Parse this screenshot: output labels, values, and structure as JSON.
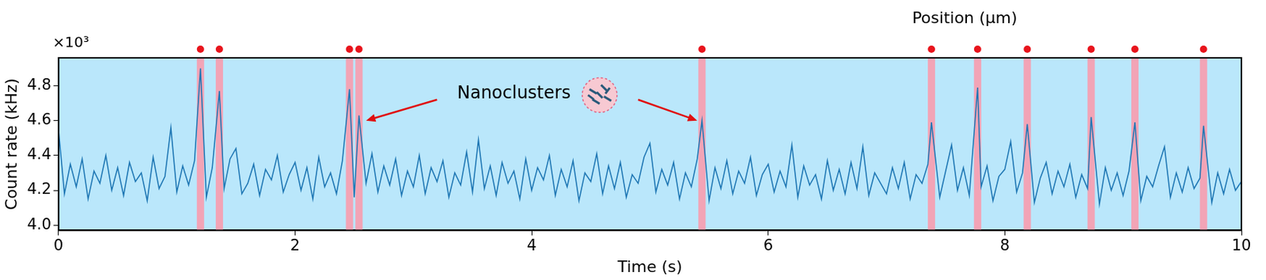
{
  "chart_data": {
    "type": "line",
    "x_label": "Time (s)",
    "y_label": "Count rate (kHz)",
    "y_multiplier": "×10³",
    "top_axis_label": "Position (μm)",
    "xlim": [
      0,
      10
    ],
    "xticks": [
      0,
      2,
      4,
      6,
      8,
      10
    ],
    "ylim": [
      3.97,
      4.96
    ],
    "yticks": [
      {
        "value": 4.0,
        "label": "4.0"
      },
      {
        "value": 4.2,
        "label": "4.2"
      },
      {
        "value": 4.4,
        "label": "4.4"
      },
      {
        "value": 4.6,
        "label": "4.6"
      },
      {
        "value": 4.8,
        "label": "4.8"
      }
    ],
    "grid": false,
    "color": "#1f77b4",
    "x": [
      0.0,
      0.05,
      0.1,
      0.15,
      0.2,
      0.25,
      0.3,
      0.35,
      0.4,
      0.45,
      0.5,
      0.55,
      0.6,
      0.65,
      0.7,
      0.75,
      0.8,
      0.85,
      0.9,
      0.95,
      1.0,
      1.05,
      1.1,
      1.15,
      1.2,
      1.25,
      1.3,
      1.36,
      1.4,
      1.45,
      1.5,
      1.55,
      1.6,
      1.65,
      1.7,
      1.75,
      1.8,
      1.85,
      1.9,
      1.95,
      2.0,
      2.05,
      2.1,
      2.15,
      2.2,
      2.25,
      2.3,
      2.35,
      2.4,
      2.46,
      2.5,
      2.54,
      2.6,
      2.65,
      2.7,
      2.75,
      2.8,
      2.85,
      2.9,
      2.95,
      3.0,
      3.05,
      3.1,
      3.15,
      3.2,
      3.25,
      3.3,
      3.35,
      3.4,
      3.45,
      3.5,
      3.55,
      3.6,
      3.65,
      3.7,
      3.75,
      3.8,
      3.85,
      3.9,
      3.95,
      4.0,
      4.05,
      4.1,
      4.15,
      4.2,
      4.25,
      4.3,
      4.35,
      4.4,
      4.45,
      4.5,
      4.55,
      4.6,
      4.65,
      4.7,
      4.75,
      4.8,
      4.85,
      4.9,
      4.95,
      5.0,
      5.05,
      5.1,
      5.15,
      5.2,
      5.25,
      5.3,
      5.35,
      5.4,
      5.44,
      5.5,
      5.55,
      5.6,
      5.65,
      5.7,
      5.75,
      5.8,
      5.85,
      5.9,
      5.95,
      6.0,
      6.05,
      6.1,
      6.15,
      6.2,
      6.25,
      6.3,
      6.35,
      6.4,
      6.45,
      6.5,
      6.55,
      6.6,
      6.65,
      6.7,
      6.75,
      6.8,
      6.85,
      6.9,
      6.95,
      7.0,
      7.05,
      7.1,
      7.15,
      7.2,
      7.25,
      7.3,
      7.35,
      7.38,
      7.45,
      7.5,
      7.55,
      7.6,
      7.65,
      7.7,
      7.77,
      7.8,
      7.85,
      7.9,
      7.95,
      8.0,
      8.05,
      8.1,
      8.15,
      8.19,
      8.25,
      8.3,
      8.35,
      8.4,
      8.45,
      8.5,
      8.55,
      8.6,
      8.65,
      8.7,
      8.73,
      8.8,
      8.85,
      8.9,
      8.95,
      9.0,
      9.05,
      9.1,
      9.15,
      9.2,
      9.25,
      9.3,
      9.35,
      9.4,
      9.45,
      9.5,
      9.55,
      9.6,
      9.65,
      9.68,
      9.75,
      9.8,
      9.85,
      9.9,
      9.95,
      10.0
    ],
    "values": [
      4.55,
      4.18,
      4.35,
      4.22,
      4.38,
      4.15,
      4.31,
      4.24,
      4.4,
      4.2,
      4.33,
      4.17,
      4.36,
      4.25,
      4.3,
      4.14,
      4.39,
      4.21,
      4.28,
      4.56,
      4.19,
      4.34,
      4.23,
      4.37,
      4.9,
      4.16,
      4.33,
      4.77,
      4.21,
      4.38,
      4.44,
      4.18,
      4.24,
      4.35,
      4.17,
      4.32,
      4.26,
      4.4,
      4.19,
      4.29,
      4.36,
      4.2,
      4.33,
      4.15,
      4.39,
      4.22,
      4.3,
      4.18,
      4.37,
      4.78,
      4.16,
      4.63,
      4.24,
      4.41,
      4.19,
      4.34,
      4.23,
      4.38,
      4.17,
      4.31,
      4.22,
      4.4,
      4.18,
      4.33,
      4.25,
      4.37,
      4.16,
      4.3,
      4.23,
      4.42,
      4.19,
      4.49,
      4.21,
      4.34,
      4.17,
      4.36,
      4.24,
      4.31,
      4.15,
      4.38,
      4.2,
      4.33,
      4.26,
      4.4,
      4.17,
      4.32,
      4.22,
      4.37,
      4.14,
      4.3,
      4.25,
      4.41,
      4.18,
      4.34,
      4.21,
      4.36,
      4.16,
      4.29,
      4.24,
      4.39,
      4.47,
      4.19,
      4.32,
      4.23,
      4.36,
      4.15,
      4.3,
      4.22,
      4.38,
      4.6,
      4.14,
      4.33,
      4.21,
      4.37,
      4.18,
      4.31,
      4.24,
      4.39,
      4.17,
      4.29,
      4.35,
      4.19,
      4.31,
      4.22,
      4.46,
      4.16,
      4.34,
      4.23,
      4.29,
      4.15,
      4.37,
      4.2,
      4.32,
      4.18,
      4.36,
      4.21,
      4.45,
      4.17,
      4.3,
      4.24,
      4.18,
      4.33,
      4.21,
      4.36,
      4.15,
      4.29,
      4.24,
      4.35,
      4.59,
      4.16,
      4.31,
      4.46,
      4.2,
      4.33,
      4.17,
      4.79,
      4.22,
      4.34,
      4.14,
      4.28,
      4.32,
      4.48,
      4.19,
      4.3,
      4.58,
      4.13,
      4.27,
      4.36,
      4.18,
      4.31,
      4.22,
      4.35,
      4.16,
      4.29,
      4.21,
      4.62,
      4.12,
      4.33,
      4.2,
      4.3,
      4.17,
      4.31,
      4.59,
      4.14,
      4.28,
      4.22,
      4.34,
      4.45,
      4.16,
      4.3,
      4.19,
      4.33,
      4.21,
      4.27,
      4.57,
      4.13,
      4.3,
      4.18,
      4.32,
      4.2,
      4.25
    ],
    "nanocluster_times": [
      1.2,
      1.36,
      2.46,
      2.54,
      5.44,
      7.38,
      7.77,
      8.19,
      8.73,
      9.1,
      9.68
    ],
    "annotation": {
      "text": "Nanoclusters",
      "x": 3.85,
      "y": 4.755,
      "arrows": [
        {
          "from": [
            3.2,
            4.72
          ],
          "to": [
            2.6,
            4.6
          ]
        },
        {
          "from": [
            4.9,
            4.72
          ],
          "to": [
            5.4,
            4.6
          ]
        }
      ]
    }
  }
}
